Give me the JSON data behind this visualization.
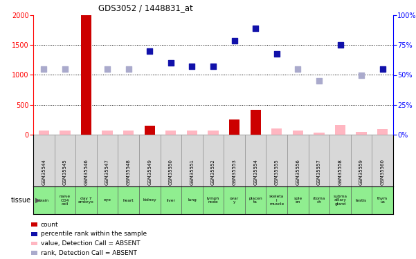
{
  "title": "GDS3052 / 1448831_at",
  "samples": [
    "GSM35544",
    "GSM35545",
    "GSM35546",
    "GSM35547",
    "GSM35548",
    "GSM35549",
    "GSM35550",
    "GSM35551",
    "GSM35552",
    "GSM35553",
    "GSM35554",
    "GSM35555",
    "GSM35556",
    "GSM35557",
    "GSM35558",
    "GSM35559",
    "GSM35560"
  ],
  "tissues": [
    "brain",
    "naive\nCD4\ncell",
    "day 7\nembryо",
    "eye",
    "heart",
    "kidney",
    "liver",
    "lung",
    "lymph\nnode",
    "ovar\ny",
    "placen\nta",
    "skeleta\nl\nmuscle",
    "sple\nen",
    "stoma\nch",
    "subma\nxillary\ngland",
    "testis",
    "thym\nus"
  ],
  "count_values": [
    70,
    70,
    2000,
    70,
    70,
    150,
    70,
    70,
    70,
    250,
    420,
    100,
    70,
    30,
    160,
    50,
    90
  ],
  "count_is_absent": [
    true,
    true,
    false,
    true,
    true,
    false,
    true,
    true,
    true,
    false,
    false,
    true,
    true,
    true,
    true,
    true,
    true
  ],
  "rank_values": [
    1100,
    1100,
    null,
    1100,
    1100,
    1400,
    1200,
    1150,
    1150,
    1575,
    1775,
    1350,
    1100,
    900,
    1500,
    1000,
    1100
  ],
  "rank_is_absent": [
    true,
    true,
    null,
    true,
    true,
    false,
    false,
    false,
    false,
    false,
    false,
    false,
    true,
    true,
    false,
    true,
    false
  ],
  "ylim_left": [
    0,
    2000
  ],
  "ylim_right": [
    0,
    100
  ],
  "yticks_left": [
    0,
    500,
    1000,
    1500,
    2000
  ],
  "yticks_right": [
    0,
    25,
    50,
    75,
    100
  ],
  "color_count_present": "#CC0000",
  "color_count_absent": "#FFB6C1",
  "color_rank_present": "#1111AA",
  "color_rank_absent": "#AAAACC",
  "bar_width": 0.5,
  "dot_size": 28,
  "gsm_bg": "#D8D8D8",
  "tissue_bg": "#90EE90",
  "grid_color": "#000000",
  "legend_items": [
    {
      "color": "#CC0000",
      "label": "count"
    },
    {
      "color": "#1111AA",
      "label": "percentile rank within the sample"
    },
    {
      "color": "#FFB6C1",
      "label": "value, Detection Call = ABSENT"
    },
    {
      "color": "#AAAACC",
      "label": "rank, Detection Call = ABSENT"
    }
  ]
}
